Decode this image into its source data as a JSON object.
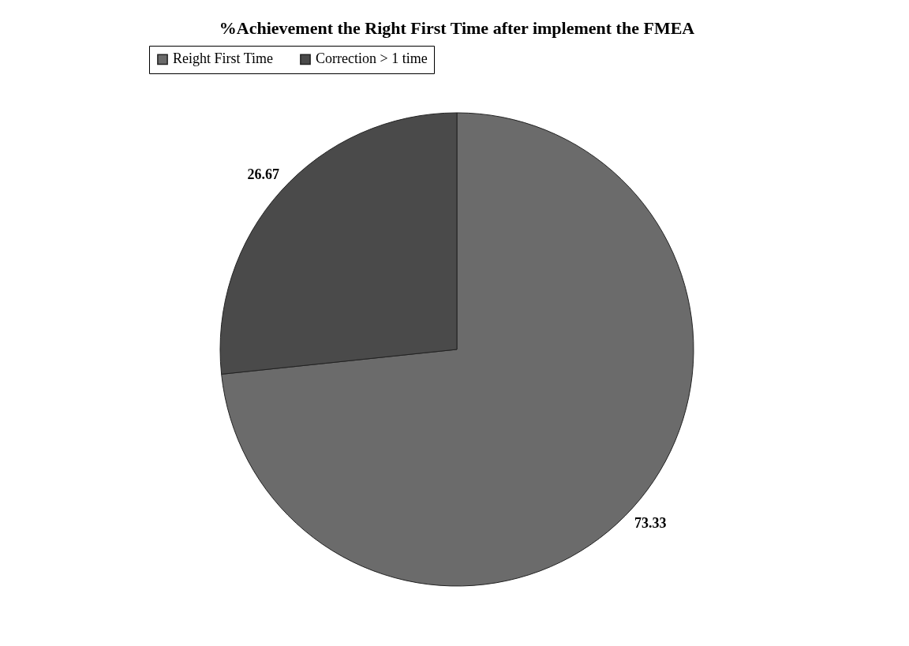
{
  "chart_data": {
    "type": "pie",
    "title": "%Achievement the Right First Time after implement the FMEA",
    "categories": [
      "Reight First Time",
      "Correction > 1 time"
    ],
    "values": [
      73.33,
      26.67
    ],
    "colors": [
      "#6b6b6b",
      "#4a4a4a"
    ],
    "data_labels": true,
    "legend": "top"
  }
}
